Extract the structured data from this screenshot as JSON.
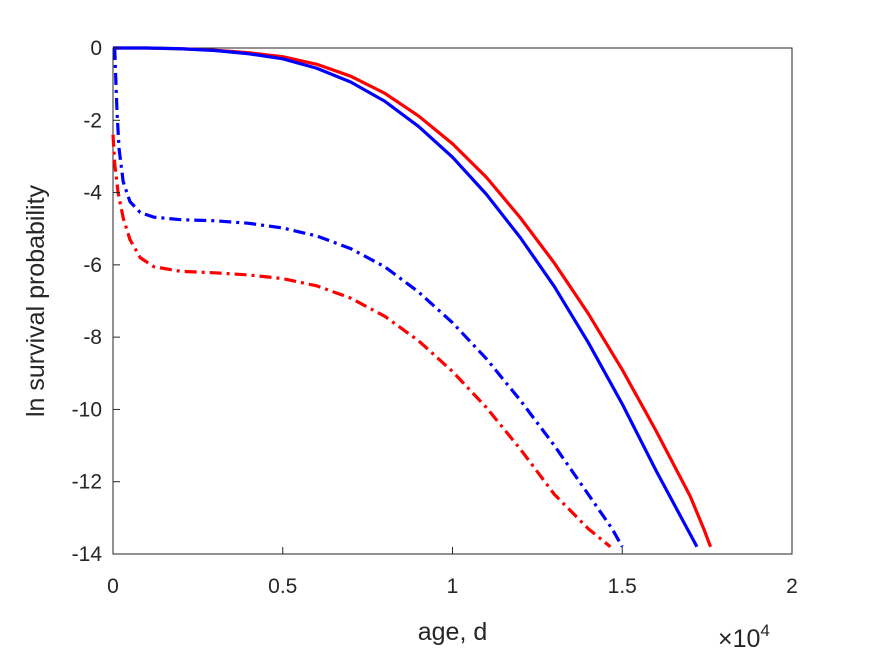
{
  "chart_data": {
    "type": "line",
    "xlabel": "age, d",
    "ylabel": "ln survival probability",
    "x_multiplier": {
      "base": "×10",
      "exponent": "4"
    },
    "xlim": [
      0,
      20000
    ],
    "ylim": [
      -14,
      0
    ],
    "xticks": [
      0,
      5000,
      10000,
      15000,
      20000
    ],
    "xtick_labels": [
      "0",
      "0.5",
      "1",
      "1.5",
      "2"
    ],
    "yticks": [
      0,
      -2,
      -4,
      -6,
      -8,
      -10,
      -12,
      -14
    ],
    "ytick_labels": [
      "0",
      "-2",
      "-4",
      "-6",
      "-8",
      "-10",
      "-12",
      "-14"
    ],
    "grid": false,
    "legend": "none",
    "series": [
      {
        "color": "#ff0000",
        "style": "solid",
        "points": [
          [
            0,
            0
          ],
          [
            1000,
            0
          ],
          [
            2000,
            -0.02
          ],
          [
            3000,
            -0.06
          ],
          [
            4000,
            -0.13
          ],
          [
            5000,
            -0.24
          ],
          [
            6000,
            -0.45
          ],
          [
            7000,
            -0.78
          ],
          [
            8000,
            -1.25
          ],
          [
            9000,
            -1.88
          ],
          [
            10000,
            -2.65
          ],
          [
            11000,
            -3.58
          ],
          [
            12000,
            -4.7
          ],
          [
            13000,
            -5.95
          ],
          [
            14000,
            -7.35
          ],
          [
            15000,
            -8.9
          ],
          [
            16000,
            -10.6
          ],
          [
            17000,
            -12.4
          ],
          [
            17400,
            -13.3
          ],
          [
            17600,
            -13.8
          ]
        ]
      },
      {
        "color": "#0000ff",
        "style": "solid",
        "points": [
          [
            0,
            0
          ],
          [
            1000,
            0
          ],
          [
            2000,
            -0.02
          ],
          [
            3000,
            -0.07
          ],
          [
            4000,
            -0.16
          ],
          [
            5000,
            -0.3
          ],
          [
            6000,
            -0.56
          ],
          [
            7000,
            -0.94
          ],
          [
            8000,
            -1.47
          ],
          [
            9000,
            -2.17
          ],
          [
            10000,
            -3.02
          ],
          [
            11000,
            -4.05
          ],
          [
            12000,
            -5.25
          ],
          [
            13000,
            -6.6
          ],
          [
            14000,
            -8.15
          ],
          [
            15000,
            -9.85
          ],
          [
            16000,
            -11.7
          ],
          [
            16800,
            -13.1
          ],
          [
            17200,
            -13.8
          ]
        ]
      },
      {
        "color": "#0000ff",
        "style": "dashdot",
        "points": [
          [
            50,
            0
          ],
          [
            80,
            -0.8
          ],
          [
            120,
            -1.8
          ],
          [
            180,
            -2.8
          ],
          [
            300,
            -3.7
          ],
          [
            500,
            -4.25
          ],
          [
            800,
            -4.55
          ],
          [
            1200,
            -4.68
          ],
          [
            2000,
            -4.75
          ],
          [
            3000,
            -4.78
          ],
          [
            4000,
            -4.85
          ],
          [
            5000,
            -4.98
          ],
          [
            6000,
            -5.2
          ],
          [
            7000,
            -5.55
          ],
          [
            8000,
            -6.05
          ],
          [
            9000,
            -6.75
          ],
          [
            10000,
            -7.6
          ],
          [
            11000,
            -8.6
          ],
          [
            12000,
            -9.75
          ],
          [
            13000,
            -11.0
          ],
          [
            14000,
            -12.35
          ],
          [
            14700,
            -13.3
          ],
          [
            15000,
            -13.8
          ]
        ]
      },
      {
        "color": "#ff0000",
        "style": "dashdot",
        "points": [
          [
            0,
            -2.4
          ],
          [
            50,
            -3.2
          ],
          [
            150,
            -4.0
          ],
          [
            300,
            -4.7
          ],
          [
            500,
            -5.3
          ],
          [
            800,
            -5.8
          ],
          [
            1200,
            -6.05
          ],
          [
            2000,
            -6.18
          ],
          [
            3000,
            -6.22
          ],
          [
            4000,
            -6.28
          ],
          [
            5000,
            -6.38
          ],
          [
            6000,
            -6.58
          ],
          [
            7000,
            -6.92
          ],
          [
            8000,
            -7.42
          ],
          [
            9000,
            -8.1
          ],
          [
            10000,
            -8.95
          ],
          [
            11000,
            -9.95
          ],
          [
            12000,
            -11.1
          ],
          [
            13000,
            -12.35
          ],
          [
            14000,
            -13.3
          ],
          [
            14650,
            -13.8
          ]
        ]
      }
    ]
  }
}
